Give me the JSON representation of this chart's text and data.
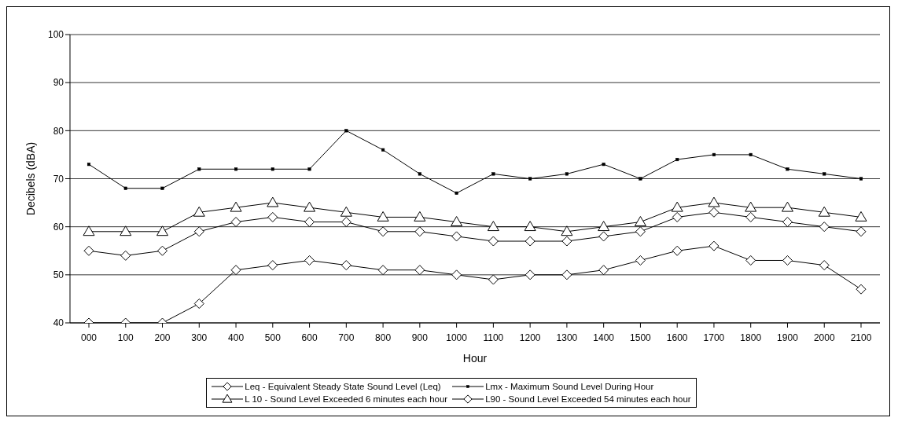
{
  "chart_data": {
    "type": "line",
    "xlabel": "Hour",
    "ylabel": "Decibels (dBA)",
    "categories": [
      "000",
      "100",
      "200",
      "300",
      "400",
      "500",
      "600",
      "700",
      "800",
      "900",
      "1000",
      "1100",
      "1200",
      "1300",
      "1400",
      "1500",
      "1600",
      "1700",
      "1800",
      "1900",
      "2000",
      "2100"
    ],
    "series": [
      {
        "name": "Leq - Equivalent Steady State Sound Level (Leq)",
        "color": "#000000",
        "marker": "diamond",
        "values": [
          55,
          54,
          55,
          59,
          61,
          62,
          61,
          61,
          59,
          59,
          58,
          57,
          57,
          57,
          58,
          59,
          62,
          63,
          62,
          61,
          60,
          59
        ]
      },
      {
        "name": "Lmx - Maximum Sound Level During Hour",
        "color": "#000000",
        "marker": "square",
        "values": [
          73,
          68,
          68,
          72,
          72,
          72,
          72,
          80,
          76,
          71,
          67,
          71,
          70,
          71,
          73,
          70,
          74,
          75,
          75,
          72,
          71,
          70
        ]
      },
      {
        "name": "L 10 - Sound Level Exceeded 6 minutes each hour",
        "color": "#000000",
        "marker": "triangle",
        "values": [
          59,
          59,
          59,
          63,
          64,
          65,
          64,
          63,
          62,
          62,
          61,
          60,
          60,
          59,
          60,
          61,
          64,
          65,
          64,
          64,
          63,
          62
        ]
      },
      {
        "name": "L90 - Sound Level Exceeded 54 minutes each hour",
        "color": "#000000",
        "marker": "diamond",
        "values": [
          40,
          40,
          40,
          44,
          51,
          52,
          53,
          52,
          51,
          51,
          50,
          49,
          50,
          50,
          51,
          53,
          55,
          56,
          53,
          53,
          52,
          47
        ]
      }
    ],
    "ylim": [
      40,
      100
    ],
    "yticks": [
      40,
      50,
      60,
      70,
      80,
      90,
      100
    ],
    "grid": "y",
    "legend": "bottom",
    "line_style": "solid"
  }
}
